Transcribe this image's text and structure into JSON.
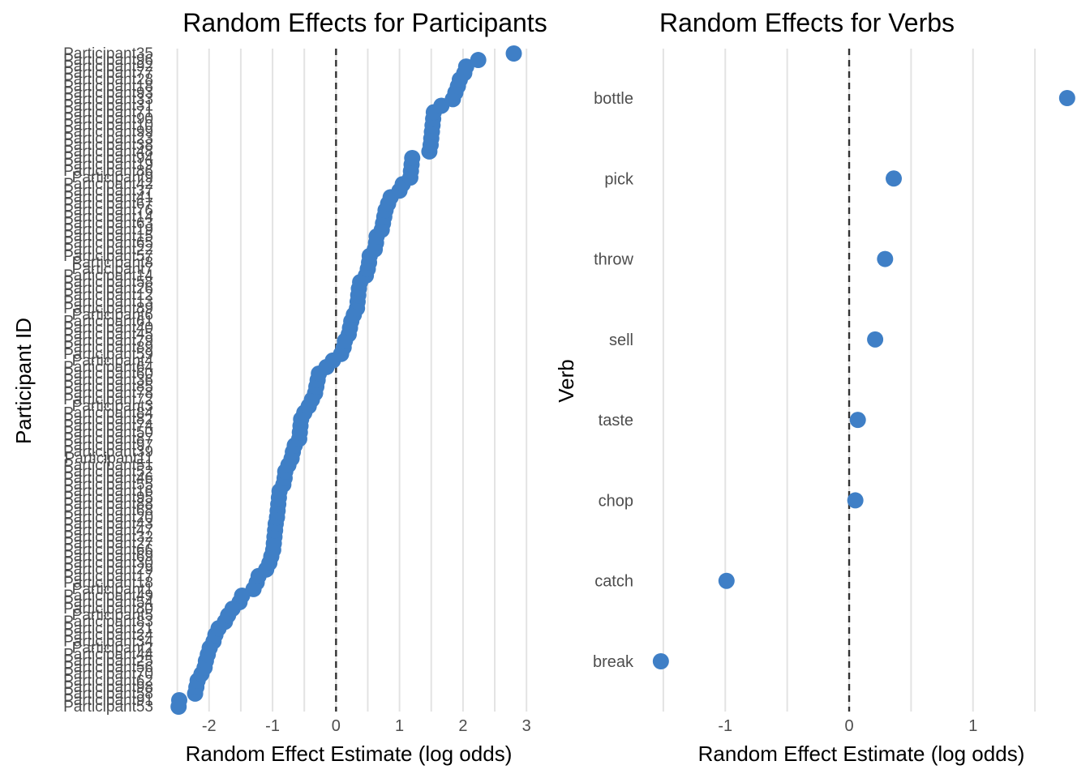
{
  "colors": {
    "point": "#3f7fc6",
    "grid": "#e3e3e3",
    "zero_line": "#333333"
  },
  "chart_data": [
    {
      "type": "scatter",
      "title": "Random Effects for Participants",
      "xlabel": "Random Effect Estimate (log odds)",
      "ylabel": "Participant ID",
      "xlim": [
        -2.7,
        3.1
      ],
      "x_ticks": [
        -2,
        -1,
        0,
        1,
        2,
        3
      ],
      "x_tick_labels": [
        "-2",
        "-1",
        "0",
        "1",
        "2",
        "3"
      ],
      "reference_line": {
        "x": 0,
        "style": "dashed"
      },
      "grid": "vertical major and minor",
      "series": [
        {
          "labels": [
            "Participant53",
            "Participant91",
            "Participant58",
            "Participant98",
            "Participant62",
            "Participant70",
            "Participant56",
            "Participant25",
            "Participant44",
            "Participant2",
            "Participant34",
            "Participant24",
            "Participant21",
            "Participant83",
            "Participant5",
            "Participant80",
            "Participant54",
            "Participant49",
            "Participant1",
            "Participant18",
            "Participant17",
            "Participant29",
            "Participant30",
            "Participant69",
            "Participant66",
            "Participant27",
            "Participant32",
            "Participant47",
            "Participant43",
            "Participant20",
            "Participant68",
            "Participant88",
            "Participant95",
            "Participant16",
            "Participant55",
            "Participant46",
            "Participant52",
            "Participant51",
            "Participant11",
            "Participant39",
            "Participant97",
            "Participant87",
            "Participant50",
            "Participant74",
            "Participant82",
            "Participant84",
            "Participant3",
            "Participant72",
            "Participant78",
            "Participant85",
            "Participant36",
            "Participant60",
            "Participant64",
            "Participant4",
            "Participant59",
            "Participant89",
            "Participant79",
            "Participant45",
            "Participant40",
            "Participant61",
            "Participant6",
            "Participant89",
            "Participant13",
            "Participant12",
            "Participant26",
            "Participant58",
            "Participant14",
            "Participant7",
            "Participant8",
            "Participant57",
            "Participant22",
            "Participant65",
            "Participant15",
            "Participant19",
            "Participant63",
            "Participant14",
            "Participant76",
            "Participant67",
            "Participant41",
            "Participant37",
            "Participant42",
            "Participant9",
            "Participant86",
            "Participant19",
            "Participant94",
            "Participant48",
            "Participant38",
            "Participant23",
            "Participant99",
            "Participant10",
            "Participant90",
            "Participant71",
            "Participant31",
            "Participant33",
            "Participant93",
            "Participant18",
            "Participant28",
            "Participant77",
            "Participant92",
            "Participant96",
            "Participant35"
          ],
          "values": [
            -2.48,
            -2.47,
            -2.22,
            -2.2,
            -2.18,
            -2.12,
            -2.07,
            -2.05,
            -2.02,
            -1.99,
            -1.93,
            -1.9,
            -1.85,
            -1.75,
            -1.7,
            -1.63,
            -1.52,
            -1.48,
            -1.3,
            -1.25,
            -1.22,
            -1.1,
            -1.05,
            -1.02,
            -0.99,
            -0.98,
            -0.97,
            -0.96,
            -0.95,
            -0.93,
            -0.92,
            -0.91,
            -0.9,
            -0.89,
            -0.83,
            -0.81,
            -0.8,
            -0.75,
            -0.7,
            -0.68,
            -0.65,
            -0.58,
            -0.57,
            -0.56,
            -0.55,
            -0.5,
            -0.43,
            -0.38,
            -0.33,
            -0.31,
            -0.29,
            -0.27,
            -0.15,
            -0.05,
            0.08,
            0.12,
            0.14,
            0.2,
            0.22,
            0.24,
            0.28,
            0.33,
            0.34,
            0.35,
            0.36,
            0.38,
            0.47,
            0.5,
            0.52,
            0.53,
            0.61,
            0.63,
            0.64,
            0.72,
            0.74,
            0.76,
            0.78,
            0.82,
            0.86,
            1.0,
            1.05,
            1.17,
            1.18,
            1.19,
            1.2,
            1.47,
            1.49,
            1.5,
            1.51,
            1.52,
            1.53,
            1.54,
            1.66,
            1.84,
            1.88,
            1.92,
            1.95,
            2.02,
            2.05,
            2.24,
            2.8
          ]
        }
      ]
    },
    {
      "type": "scatter",
      "title": "Random Effects for Verbs",
      "xlabel": "Random Effect Estimate (log odds)",
      "ylabel": "Verb",
      "xlim": [
        -1.65,
        1.82
      ],
      "x_ticks": [
        -1,
        0,
        1
      ],
      "x_tick_labels": [
        "-1",
        "0",
        "1"
      ],
      "reference_line": {
        "x": 0,
        "style": "dashed"
      },
      "grid": "vertical major and minor",
      "categories": [
        "break",
        "catch",
        "chop",
        "taste",
        "sell",
        "throw",
        "pick",
        "bottle"
      ],
      "values": [
        -1.52,
        -0.99,
        0.05,
        0.07,
        0.21,
        0.29,
        0.36,
        1.76
      ]
    }
  ]
}
